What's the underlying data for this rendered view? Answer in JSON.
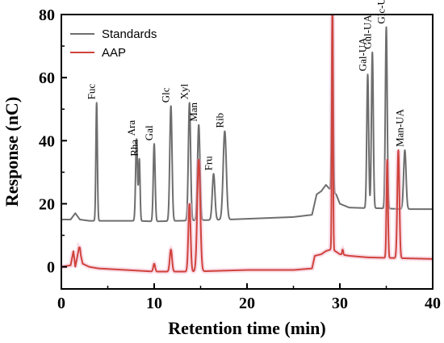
{
  "chart_data": {
    "type": "line",
    "title": "",
    "xlabel": "Retention time (min)",
    "ylabel": "Response (nC)",
    "xlim": [
      0,
      40
    ],
    "ylim": [
      -7,
      80
    ],
    "xticks": [
      0,
      10,
      20,
      30,
      40
    ],
    "yticks": [
      0,
      20,
      40,
      60,
      80
    ],
    "grid": false,
    "legend_position": "top-left",
    "series": [
      {
        "name": "Standards",
        "color": "#6e6e6e",
        "baseline": [
          [
            0,
            15
          ],
          [
            1,
            15
          ],
          [
            1.5,
            17
          ],
          [
            2,
            15
          ],
          [
            3,
            14.6
          ],
          [
            8,
            14.6
          ],
          [
            10,
            14.4
          ],
          [
            18,
            15
          ],
          [
            25,
            15.8
          ],
          [
            27,
            16.5
          ],
          [
            27.5,
            23
          ],
          [
            28,
            24
          ],
          [
            28.5,
            26
          ],
          [
            28.8,
            25
          ],
          [
            29.1,
            24
          ],
          [
            29.6,
            23
          ],
          [
            30,
            20
          ],
          [
            31,
            18.8
          ],
          [
            32,
            18.7
          ],
          [
            33,
            18.6
          ],
          [
            34,
            18.6
          ],
          [
            35,
            18.5
          ],
          [
            36,
            18.4
          ],
          [
            37,
            18.3
          ],
          [
            38,
            18.3
          ],
          [
            40,
            18.3
          ]
        ],
        "peaks": [
          {
            "x": 3.8,
            "y": 52,
            "width": 0.08,
            "label": "Fuc"
          },
          {
            "x": 8.1,
            "y": 40.5,
            "width": 0.1,
            "label": "Ara"
          },
          {
            "x": 8.4,
            "y": 34,
            "width": 0.08,
            "label": "Rha"
          },
          {
            "x": 10.0,
            "y": 39,
            "width": 0.1,
            "label": "Gal"
          },
          {
            "x": 11.8,
            "y": 51,
            "width": 0.12,
            "label": "Glc"
          },
          {
            "x": 13.8,
            "y": 52,
            "width": 0.12,
            "label": "Xyl"
          },
          {
            "x": 14.8,
            "y": 45,
            "width": 0.13,
            "label": "Man"
          },
          {
            "x": 16.4,
            "y": 29.5,
            "width": 0.14,
            "label": "Fru"
          },
          {
            "x": 17.6,
            "y": 43,
            "width": 0.17,
            "label": "Rib"
          },
          {
            "x": 29.2,
            "y": 84,
            "width": 0.08,
            "label": ""
          },
          {
            "x": 33.0,
            "y": 61,
            "width": 0.1,
            "label": "Gal-UA"
          },
          {
            "x": 33.5,
            "y": 68,
            "width": 0.1,
            "label": "Gul-UA"
          },
          {
            "x": 35.0,
            "y": 76,
            "width": 0.1,
            "label": "Glc-UA"
          },
          {
            "x": 37.0,
            "y": 37,
            "width": 0.13,
            "label": "Man-UA"
          }
        ]
      },
      {
        "name": "AAP",
        "color": "#d0433c",
        "baseline": [
          [
            0,
            0
          ],
          [
            1,
            0.5
          ],
          [
            1.3,
            5
          ],
          [
            1.5,
            0
          ],
          [
            1.9,
            6
          ],
          [
            2.3,
            1
          ],
          [
            3,
            0
          ],
          [
            4,
            -0.5
          ],
          [
            10,
            -1.5
          ],
          [
            14,
            -1.5
          ],
          [
            20,
            -1
          ],
          [
            25,
            -1
          ],
          [
            27,
            -0.5
          ],
          [
            27.3,
            3.5
          ],
          [
            28,
            4
          ],
          [
            28.5,
            5
          ],
          [
            29,
            5.5
          ],
          [
            29.5,
            5
          ],
          [
            30,
            4
          ],
          [
            31,
            3.5
          ],
          [
            33,
            3
          ],
          [
            40,
            2.5
          ]
        ],
        "peaks": [
          {
            "x": 2.0,
            "y": 6,
            "width": 0.05,
            "label": ""
          },
          {
            "x": 10.0,
            "y": 1,
            "width": 0.1,
            "label": ""
          },
          {
            "x": 11.8,
            "y": 5.5,
            "width": 0.12,
            "label": ""
          },
          {
            "x": 13.8,
            "y": 20,
            "width": 0.12,
            "label": ""
          },
          {
            "x": 14.8,
            "y": 34,
            "width": 0.16,
            "label": ""
          },
          {
            "x": 29.2,
            "y": 84,
            "width": 0.06,
            "label": ""
          },
          {
            "x": 30.3,
            "y": 5.5,
            "width": 0.06,
            "label": ""
          },
          {
            "x": 35.1,
            "y": 34,
            "width": 0.08,
            "label": ""
          },
          {
            "x": 36.3,
            "y": 37,
            "width": 0.11,
            "label": ""
          }
        ]
      }
    ]
  }
}
